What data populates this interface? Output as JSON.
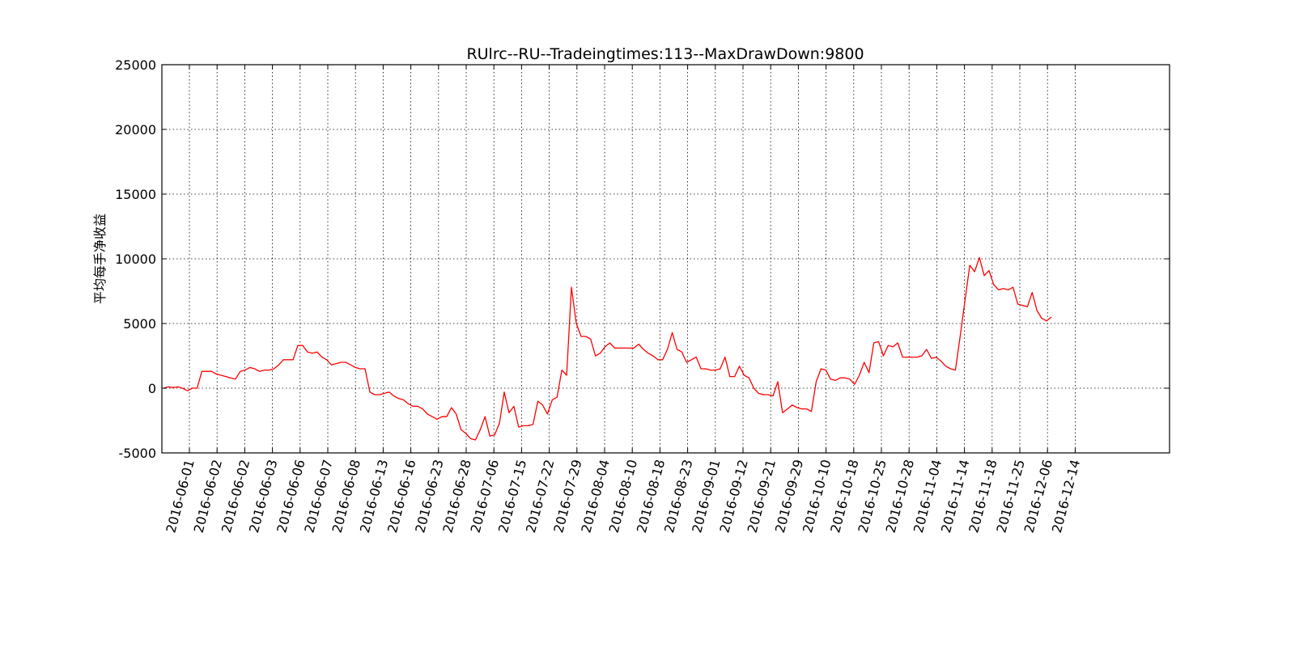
{
  "chart_data": {
    "type": "line",
    "title": "RUlrc--RU--Tradeingtimes:113--MaxDrawDown:9800",
    "ylabel": "平均每手净收益",
    "xlabel": "",
    "ylim": [
      -5000,
      25000
    ],
    "yticks": [
      -5000,
      0,
      5000,
      10000,
      15000,
      20000,
      25000
    ],
    "xticks": [
      "2016-06-01",
      "2016-06-02",
      "2016-06-02",
      "2016-06-03",
      "2016-06-06",
      "2016-06-07",
      "2016-06-08",
      "2016-06-13",
      "2016-06-16",
      "2016-06-23",
      "2016-06-28",
      "2016-07-06",
      "2016-07-15",
      "2016-07-22",
      "2016-07-29",
      "2016-08-04",
      "2016-08-10",
      "2016-08-18",
      "2016-08-23",
      "2016-09-01",
      "2016-09-12",
      "2016-09-21",
      "2016-09-29",
      "2016-10-10",
      "2016-10-18",
      "2016-10-25",
      "2016-10-28",
      "2016-11-04",
      "2016-11-14",
      "2016-11-18",
      "2016-11-25",
      "2016-12-06",
      "2016-12-14"
    ],
    "grid": true,
    "x_index_range": [
      0,
      370
    ],
    "series": [
      {
        "color": "#ff0000",
        "points": [
          [
            0,
            0
          ],
          [
            2,
            100
          ],
          [
            4,
            50
          ],
          [
            6,
            100
          ],
          [
            8,
            0
          ],
          [
            10,
            -200
          ],
          [
            12,
            0
          ],
          [
            14,
            0
          ],
          [
            16,
            1300
          ],
          [
            18,
            1300
          ],
          [
            20,
            1300
          ],
          [
            22,
            1100
          ],
          [
            24,
            1000
          ],
          [
            26,
            900
          ],
          [
            28,
            800
          ],
          [
            30,
            700
          ],
          [
            32,
            1300
          ],
          [
            34,
            1400
          ],
          [
            36,
            1600
          ],
          [
            38,
            1500
          ],
          [
            40,
            1300
          ],
          [
            42,
            1400
          ],
          [
            44,
            1400
          ],
          [
            46,
            1500
          ],
          [
            48,
            1800
          ],
          [
            50,
            2200
          ],
          [
            52,
            2200
          ],
          [
            54,
            2200
          ],
          [
            56,
            3300
          ],
          [
            58,
            3300
          ],
          [
            60,
            2800
          ],
          [
            62,
            2700
          ],
          [
            64,
            2800
          ],
          [
            66,
            2400
          ],
          [
            68,
            2200
          ],
          [
            70,
            1800
          ],
          [
            72,
            1900
          ],
          [
            74,
            2000
          ],
          [
            76,
            2000
          ],
          [
            78,
            1800
          ],
          [
            80,
            1600
          ],
          [
            82,
            1500
          ],
          [
            84,
            1500
          ],
          [
            86,
            -300
          ],
          [
            88,
            -500
          ],
          [
            90,
            -500
          ],
          [
            92,
            -400
          ],
          [
            94,
            -300
          ],
          [
            96,
            -600
          ],
          [
            98,
            -800
          ],
          [
            100,
            -900
          ],
          [
            102,
            -1200
          ],
          [
            104,
            -1400
          ],
          [
            106,
            -1400
          ],
          [
            108,
            -1600
          ],
          [
            110,
            -2000
          ],
          [
            112,
            -2200
          ],
          [
            114,
            -2400
          ],
          [
            116,
            -2200
          ],
          [
            118,
            -2200
          ],
          [
            120,
            -1500
          ],
          [
            122,
            -2000
          ],
          [
            124,
            -3200
          ],
          [
            126,
            -3500
          ],
          [
            128,
            -3900
          ],
          [
            130,
            -4000
          ],
          [
            132,
            -3200
          ],
          [
            134,
            -2200
          ],
          [
            136,
            -3700
          ],
          [
            138,
            -3600
          ],
          [
            140,
            -2700
          ],
          [
            142,
            -300
          ],
          [
            144,
            -1900
          ],
          [
            146,
            -1400
          ],
          [
            148,
            -3000
          ],
          [
            150,
            -2900
          ],
          [
            152,
            -2900
          ],
          [
            154,
            -2800
          ],
          [
            156,
            -1000
          ],
          [
            158,
            -1300
          ],
          [
            160,
            -2000
          ],
          [
            162,
            -900
          ],
          [
            164,
            -700
          ],
          [
            166,
            1400
          ],
          [
            168,
            1000
          ],
          [
            170,
            7800
          ],
          [
            172,
            5000
          ],
          [
            174,
            4000
          ],
          [
            176,
            4000
          ],
          [
            178,
            3800
          ],
          [
            180,
            2500
          ],
          [
            182,
            2700
          ],
          [
            184,
            3200
          ],
          [
            186,
            3500
          ],
          [
            188,
            3100
          ],
          [
            190,
            3100
          ],
          [
            192,
            3100
          ],
          [
            194,
            3100
          ],
          [
            196,
            3100
          ],
          [
            198,
            3400
          ],
          [
            200,
            3000
          ],
          [
            202,
            2700
          ],
          [
            204,
            2500
          ],
          [
            206,
            2200
          ],
          [
            208,
            2200
          ],
          [
            210,
            3000
          ],
          [
            212,
            4300
          ],
          [
            214,
            3000
          ],
          [
            216,
            2800
          ],
          [
            218,
            2000
          ],
          [
            220,
            2200
          ],
          [
            222,
            2400
          ],
          [
            224,
            1500
          ],
          [
            226,
            1500
          ],
          [
            228,
            1400
          ],
          [
            230,
            1400
          ],
          [
            232,
            1500
          ],
          [
            234,
            2400
          ],
          [
            236,
            900
          ],
          [
            238,
            900
          ],
          [
            240,
            1700
          ],
          [
            242,
            1000
          ],
          [
            244,
            800
          ],
          [
            246,
            0
          ],
          [
            248,
            -400
          ],
          [
            250,
            -500
          ],
          [
            252,
            -500
          ],
          [
            254,
            -600
          ],
          [
            256,
            500
          ],
          [
            258,
            -1900
          ],
          [
            260,
            -1600
          ],
          [
            262,
            -1300
          ],
          [
            264,
            -1500
          ],
          [
            266,
            -1600
          ],
          [
            268,
            -1600
          ],
          [
            270,
            -1800
          ],
          [
            272,
            500
          ],
          [
            274,
            1500
          ],
          [
            276,
            1400
          ],
          [
            278,
            700
          ],
          [
            280,
            600
          ],
          [
            282,
            800
          ],
          [
            284,
            800
          ],
          [
            286,
            700
          ],
          [
            288,
            300
          ],
          [
            290,
            1000
          ],
          [
            292,
            2000
          ],
          [
            294,
            1200
          ],
          [
            296,
            3500
          ],
          [
            298,
            3600
          ],
          [
            300,
            2500
          ],
          [
            302,
            3300
          ],
          [
            304,
            3200
          ],
          [
            306,
            3500
          ],
          [
            308,
            2400
          ],
          [
            310,
            2400
          ],
          [
            312,
            2400
          ],
          [
            314,
            2400
          ],
          [
            316,
            2500
          ],
          [
            318,
            3000
          ],
          [
            320,
            2300
          ],
          [
            322,
            2400
          ],
          [
            324,
            2100
          ],
          [
            326,
            1700
          ],
          [
            328,
            1500
          ],
          [
            330,
            1400
          ],
          [
            332,
            4000
          ],
          [
            334,
            6800
          ],
          [
            336,
            9500
          ],
          [
            338,
            9000
          ],
          [
            340,
            10100
          ],
          [
            342,
            8700
          ],
          [
            344,
            9100
          ],
          [
            346,
            8000
          ],
          [
            348,
            7600
          ],
          [
            350,
            7700
          ],
          [
            352,
            7600
          ],
          [
            354,
            7800
          ],
          [
            356,
            6500
          ],
          [
            358,
            6400
          ],
          [
            360,
            6300
          ],
          [
            362,
            7400
          ],
          [
            364,
            6000
          ],
          [
            366,
            5400
          ],
          [
            368,
            5200
          ],
          [
            370,
            5500
          ]
        ]
      }
    ]
  }
}
